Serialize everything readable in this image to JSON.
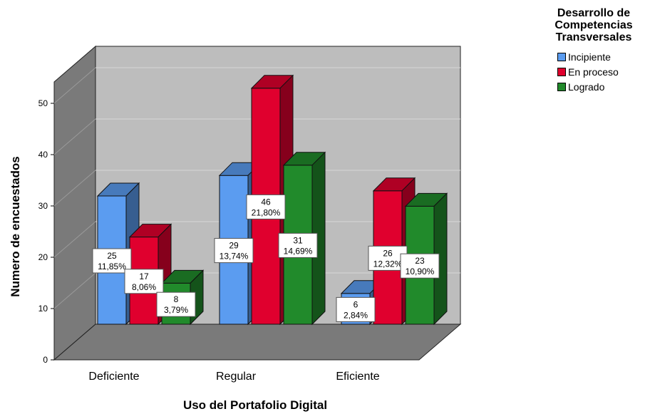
{
  "chart_data": {
    "type": "bar",
    "categories": [
      "Deficiente",
      "Regular",
      "Eficiente"
    ],
    "series": [
      {
        "name": "Incipiente",
        "color": "#5b9cf0",
        "values": [
          25,
          29,
          6
        ],
        "labels": [
          "11,85%",
          "13,74%",
          "2,84%"
        ]
      },
      {
        "name": "En proceso",
        "color": "#e0002e",
        "values": [
          17,
          46,
          26
        ],
        "labels": [
          "8,06%",
          "21,80%",
          "12,32%"
        ]
      },
      {
        "name": "Logrado",
        "color": "#218a2b",
        "values": [
          8,
          31,
          23
        ],
        "labels": [
          "3,79%",
          "14,69%",
          "10,90%"
        ]
      }
    ],
    "xlabel": "Uso del Portafolio Digital",
    "ylabel": "Numero de encuestados",
    "yticks": [
      0,
      10,
      20,
      30,
      40,
      50
    ],
    "ylim": [
      0,
      50
    ],
    "legend_title_lines": [
      "Desarrollo de",
      "Competencias",
      "Transversales"
    ],
    "legend_position": "top-right",
    "grid": true,
    "style": "3d"
  }
}
